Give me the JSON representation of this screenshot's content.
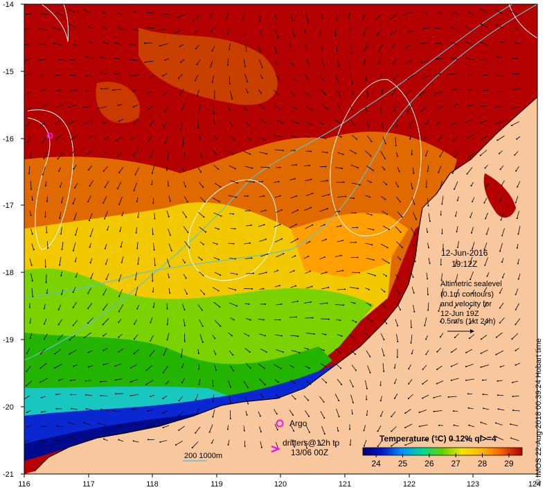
{
  "map": {
    "y_ticks": [
      "-14",
      "-15",
      "-16",
      "-17",
      "-18",
      "-19",
      "-20",
      "-21"
    ],
    "x_ticks": [
      "116",
      "117",
      "118",
      "119",
      "120",
      "121",
      "122",
      "123",
      "124"
    ],
    "datetime_line1": "12-Jun-2016",
    "datetime_line2": "19:12Z",
    "altimetry_lines": [
      "Altimetric sealevel",
      "(0.1m contours)",
      "and velocity for",
      "12-Jun 19Z",
      "0.5m/s (1kt 24h)"
    ],
    "argo_label": "Argo",
    "drifters_line1": "drifters@12h to",
    "drifters_line2": "13/06 00Z",
    "bathy_label": "200  1000m",
    "colorbar_title": "Temperature (°C) 0 12% ql>=4",
    "colorbar_ticks": [
      "24",
      "25",
      "26",
      "27",
      "28",
      "29"
    ],
    "colorbar_range": [
      23.5,
      29.5
    ],
    "colors": {
      "land": "#f9c79e",
      "warm": "#b40000",
      "contour": "#ffffff",
      "bathy": "#5fc3c8",
      "argo": "#e619e6"
    },
    "credit": "© IMOS 22-Aug-2018 00:39:24 Hobart time"
  }
}
